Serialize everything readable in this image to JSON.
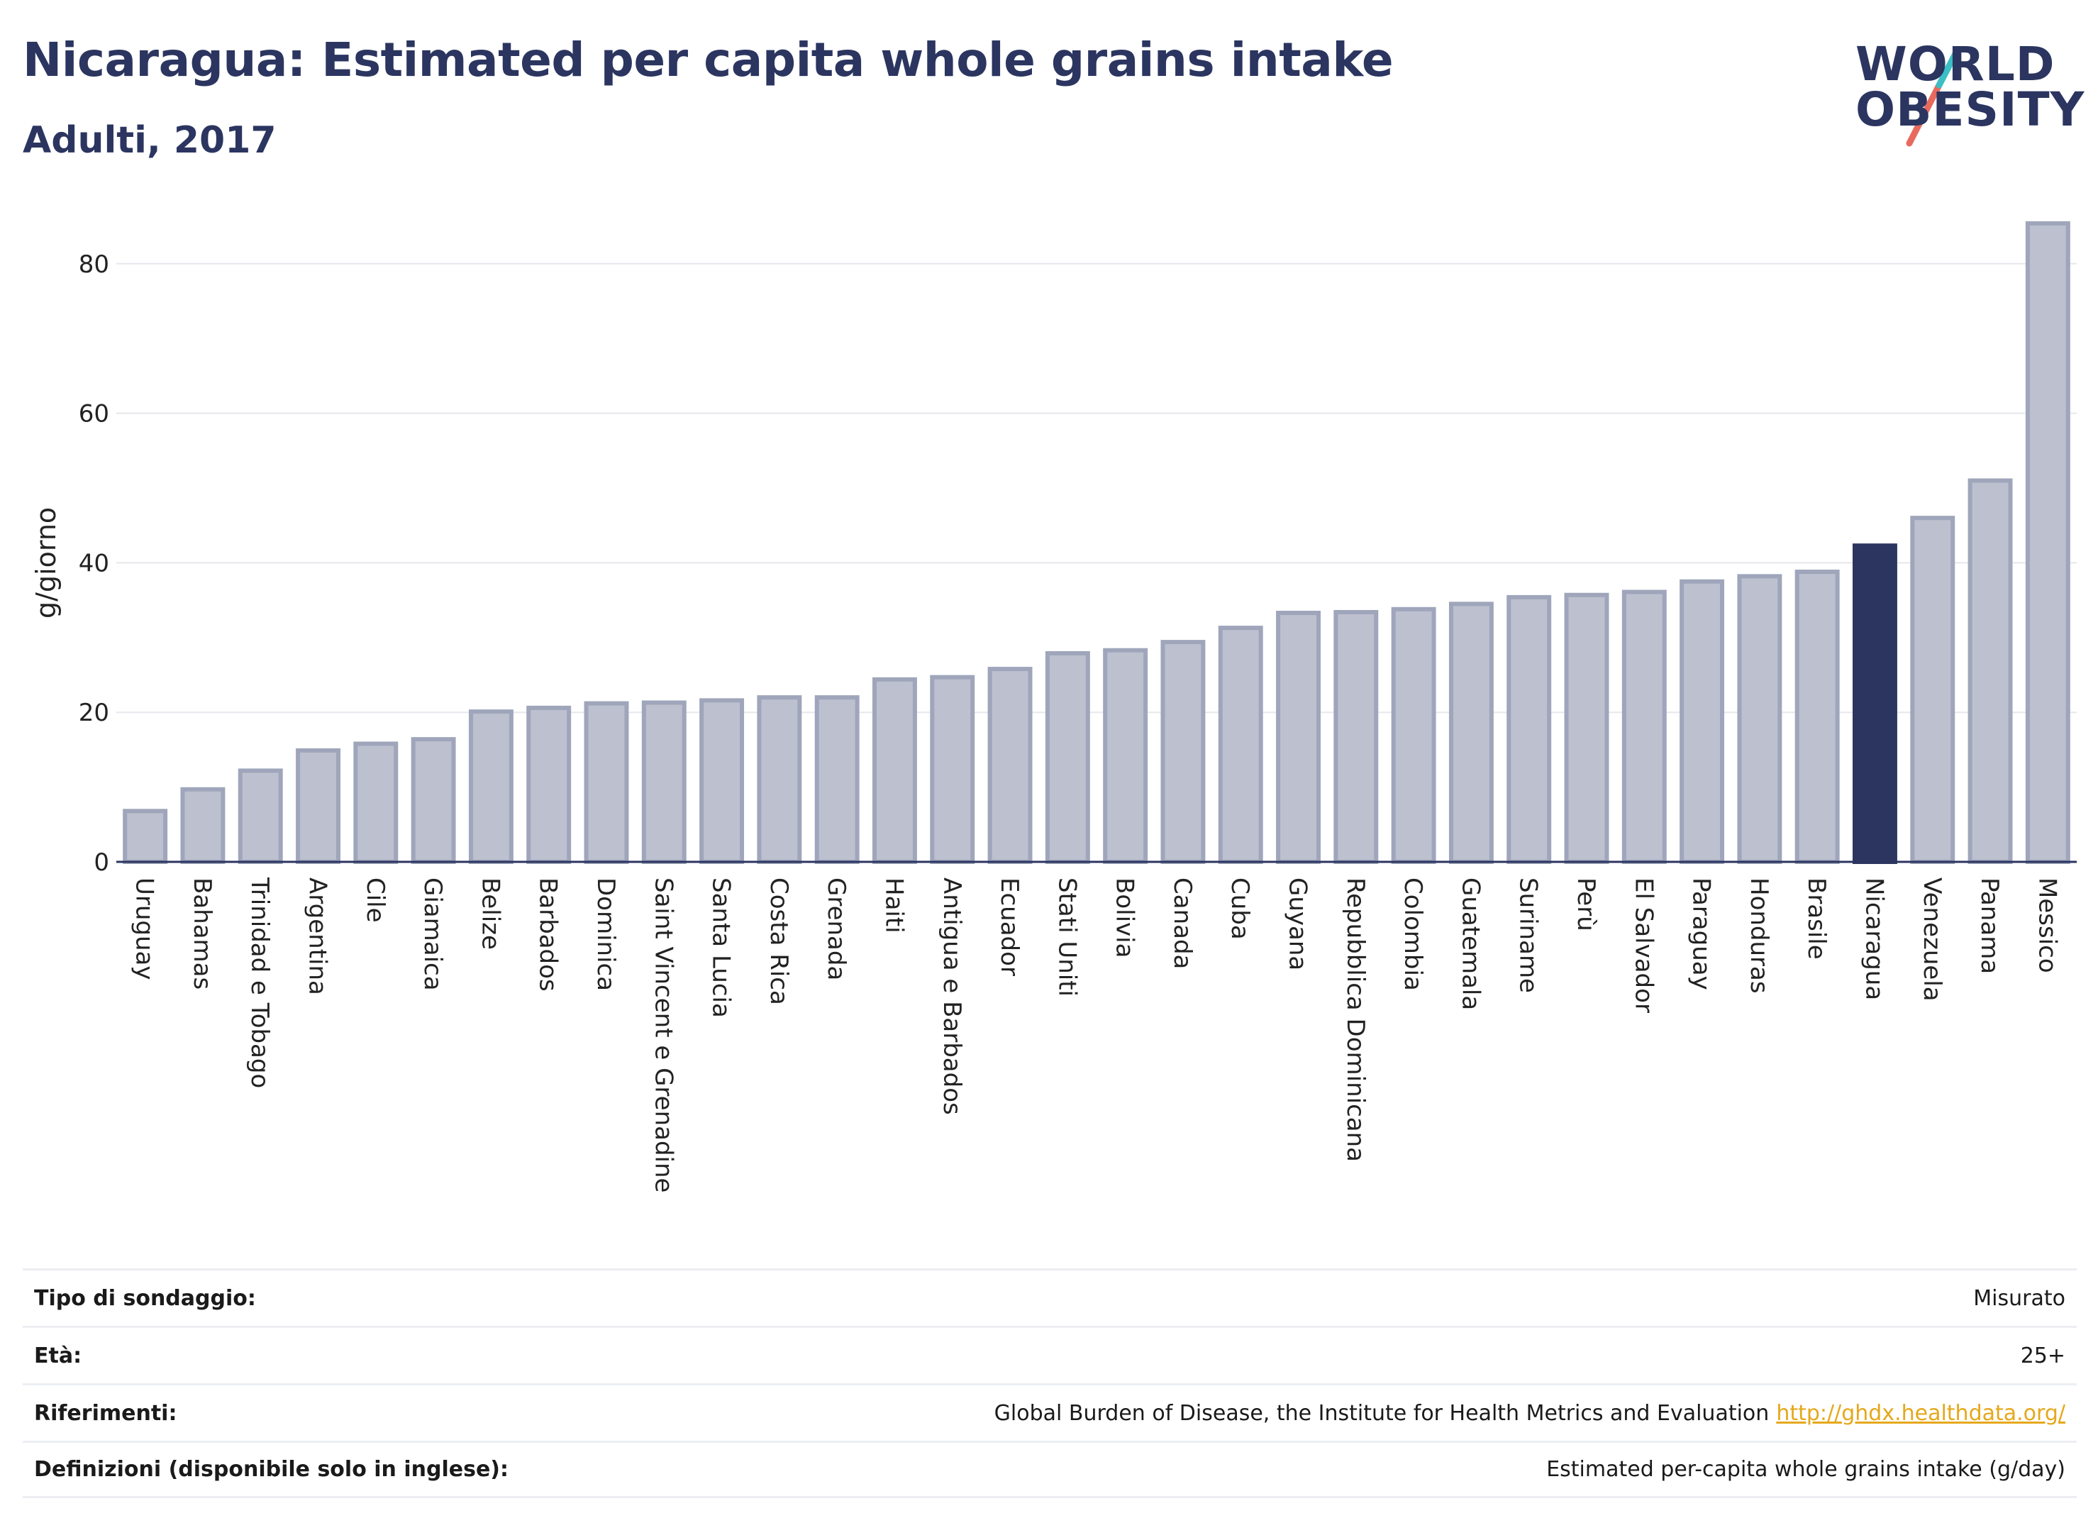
{
  "title": "Nicaragua: Estimated per capita whole grains intake",
  "subtitle": "Adulti, 2017",
  "logo": {
    "line1": "WORLD",
    "line2": "OBESITY",
    "colors": [
      "#2b3560",
      "#3bbfc4",
      "#e86a5e"
    ]
  },
  "colors": {
    "bar": "#bcc0cf",
    "bar_stroke": "#9fa5ba",
    "highlight": "#2b3560",
    "grid": "#e6e8ee",
    "axis": "#2b3560"
  },
  "chart_data": {
    "type": "bar",
    "title": "Nicaragua: Estimated per capita whole grains intake",
    "ylabel": "g/giorno",
    "ylim": [
      0,
      88
    ],
    "yticks": [
      0,
      20,
      40,
      60,
      80
    ],
    "grid": true,
    "highlight": "Nicaragua",
    "categories": [
      "Uruguay",
      "Bahamas",
      "Trinidad e Tobago",
      "Argentina",
      "Cile",
      "Giamaica",
      "Belize",
      "Barbados",
      "Dominica",
      "Saint Vincent e Grenadine",
      "Santa Lucia",
      "Costa Rica",
      "Grenada",
      "Haiti",
      "Antigua e Barbados",
      "Ecuador",
      "Stati Uniti",
      "Bolivia",
      "Canada",
      "Cuba",
      "Guyana",
      "Repubblica Dominicana",
      "Colombia",
      "Guatemala",
      "Suriname",
      "Perù",
      "El Salvador",
      "Paraguay",
      "Honduras",
      "Brasile",
      "Nicaragua",
      "Venezuela",
      "Panama",
      "Messico"
    ],
    "values": [
      6.8,
      9.7,
      12.2,
      14.9,
      15.8,
      16.4,
      20.1,
      20.6,
      21.2,
      21.3,
      21.6,
      22.0,
      22.0,
      24.4,
      24.7,
      25.8,
      27.9,
      28.3,
      29.4,
      31.3,
      33.3,
      33.4,
      33.8,
      34.5,
      35.4,
      35.7,
      36.1,
      37.5,
      38.2,
      38.8,
      42.3,
      46.0,
      51.0,
      85.4
    ]
  },
  "info": [
    {
      "key": "Tipo di sondaggio:",
      "value": "Misurato"
    },
    {
      "key": "Età:",
      "value": "25+"
    },
    {
      "key": "Riferimenti:",
      "value": "Global Burden of Disease, the Institute for Health Metrics and Evaluation",
      "link": "http://ghdx.healthdata.org/"
    },
    {
      "key": "Definizioni (disponibile solo in inglese):",
      "value": "Estimated per-capita whole grains intake (g/day)"
    }
  ]
}
